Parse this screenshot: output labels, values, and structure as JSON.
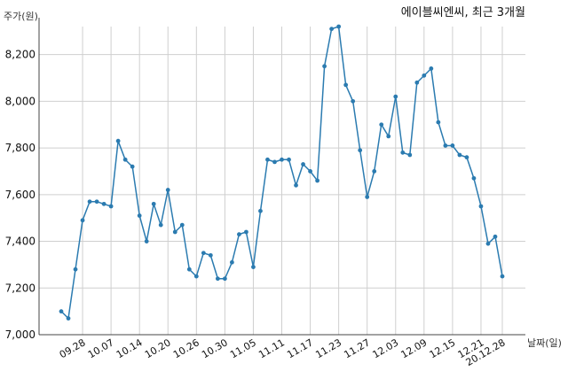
{
  "chart_data": {
    "type": "line",
    "title": "에이블씨엔씨, 최근 3개월",
    "xlabel": "날짜(일)",
    "ylabel": "주가(원)",
    "ylim": [
      7000,
      8320
    ],
    "yticks": [
      7000,
      7200,
      7400,
      7600,
      7800,
      8000,
      8200
    ],
    "ytick_labels": [
      "7,000",
      "7,200",
      "7,400",
      "7,600",
      "7,800",
      "8,000",
      "8,200"
    ],
    "grid": true,
    "line_color": "#2b7bb0",
    "xtick_labels": [
      {
        "label": "09.28",
        "index": 3
      },
      {
        "label": "10.07",
        "index": 7
      },
      {
        "label": "10.14",
        "index": 11
      },
      {
        "label": "10.20",
        "index": 15
      },
      {
        "label": "10.26",
        "index": 19
      },
      {
        "label": "10.30",
        "index": 23
      },
      {
        "label": "11.05",
        "index": 27
      },
      {
        "label": "11.11",
        "index": 31
      },
      {
        "label": "11.17",
        "index": 35
      },
      {
        "label": "11.23",
        "index": 39
      },
      {
        "label": "11.27",
        "index": 43
      },
      {
        "label": "12.03",
        "index": 47
      },
      {
        "label": "12.09",
        "index": 51
      },
      {
        "label": "12.15",
        "index": 55
      },
      {
        "label": "12.21",
        "index": 59
      },
      {
        "label": "20.12.28",
        "index": 62
      }
    ],
    "series": [
      {
        "values": [
          7100,
          7070,
          7280,
          7490,
          7570,
          7570,
          7560,
          7550,
          7830,
          7750,
          7720,
          7510,
          7400,
          7560,
          7470,
          7620,
          7440,
          7470,
          7280,
          7250,
          7350,
          7340,
          7240,
          7240,
          7310,
          7430,
          7440,
          7290,
          7530,
          7750,
          7740,
          7750,
          7750,
          7640,
          7730,
          7700,
          7660,
          8150,
          8310,
          8320,
          8070,
          8000,
          7790,
          7590,
          7700,
          7900,
          7850,
          8020,
          7780,
          7770,
          8080,
          8110,
          8140,
          7910,
          7810,
          7810,
          7770,
          7760,
          7670,
          7550,
          7390,
          7420,
          7250
        ]
      }
    ]
  }
}
